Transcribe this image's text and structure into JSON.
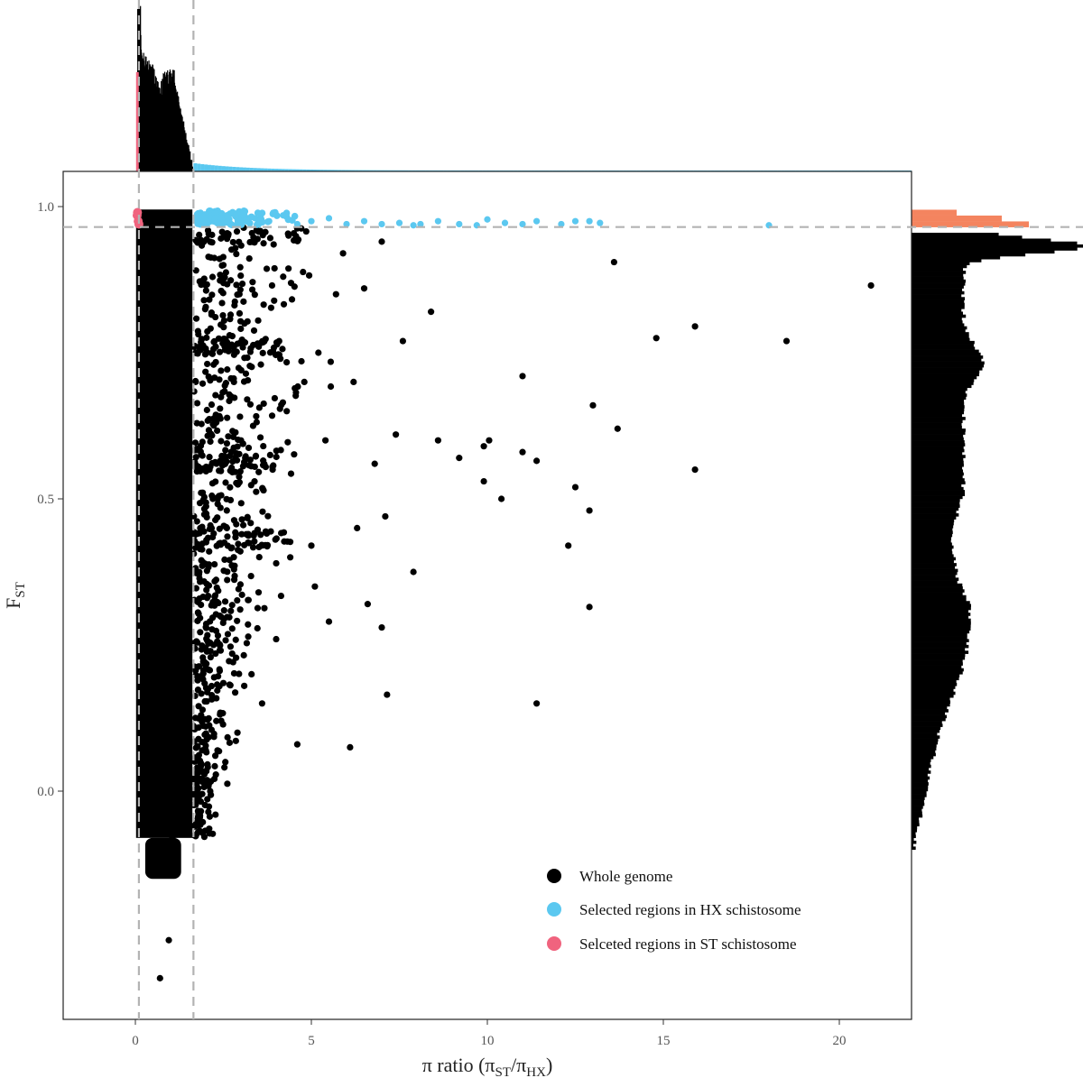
{
  "chart_data": {
    "type": "scatter",
    "xlabel": {
      "main": "π ratio (π",
      "sub1": "ST",
      "slash": "/π",
      "sub2": "HX",
      "close": ")"
    },
    "ylabel": {
      "main": "F",
      "sub": "ST"
    },
    "xlim": [
      -2,
      22
    ],
    "ylim": [
      -0.38,
      1.07
    ],
    "xticks": [
      0,
      5,
      10,
      15,
      20
    ],
    "xtick_labels": [
      "0",
      "5",
      "10",
      "15",
      "20"
    ],
    "yticks": [
      0.0,
      0.5,
      1.0
    ],
    "ytick_labels": [
      "0.0",
      "0.5",
      "1.0"
    ],
    "grid": false,
    "legend_position": "bottom-right",
    "thresholds": {
      "x_low": 0.1,
      "x_high": 1.65,
      "y": 0.965
    },
    "colors": {
      "whole_genome": "#000000",
      "hx_selected": "#5BC8F0",
      "st_selected": "#F0637E",
      "fst_hist_selected": "#F4845F",
      "threshold_line": "#B3B3B3"
    },
    "series": [
      {
        "name": "Whole genome",
        "points": [
          [
            0.7,
            -0.32
          ],
          [
            0.95,
            -0.255
          ],
          [
            0.9,
            -0.12
          ],
          [
            1.05,
            -0.08
          ],
          [
            0.75,
            -0.09
          ],
          [
            0.5,
            -0.1
          ],
          [
            1.6,
            -0.06
          ],
          [
            2.0,
            0.07
          ],
          [
            2.3,
            0.12
          ],
          [
            4.6,
            0.08
          ],
          [
            6.1,
            0.075
          ],
          [
            7.15,
            0.165
          ],
          [
            11.4,
            0.15
          ],
          [
            3.3,
            0.2
          ],
          [
            4.0,
            0.26
          ],
          [
            3.5,
            0.34
          ],
          [
            5.1,
            0.35
          ],
          [
            5.5,
            0.29
          ],
          [
            6.6,
            0.32
          ],
          [
            7.0,
            0.28
          ],
          [
            4.4,
            0.4
          ],
          [
            5.0,
            0.42
          ],
          [
            6.3,
            0.45
          ],
          [
            7.1,
            0.47
          ],
          [
            7.9,
            0.375
          ],
          [
            9.9,
            0.53
          ],
          [
            10.4,
            0.5
          ],
          [
            12.3,
            0.42
          ],
          [
            12.9,
            0.48
          ],
          [
            12.9,
            0.315
          ],
          [
            12.5,
            0.52
          ],
          [
            13.0,
            0.66
          ],
          [
            13.7,
            0.62
          ],
          [
            15.9,
            0.55
          ],
          [
            8.6,
            0.6
          ],
          [
            9.2,
            0.57
          ],
          [
            9.9,
            0.59
          ],
          [
            10.05,
            0.6
          ],
          [
            11.0,
            0.58
          ],
          [
            11.4,
            0.565
          ],
          [
            11.0,
            0.71
          ],
          [
            8.4,
            0.82
          ],
          [
            7.6,
            0.77
          ],
          [
            14.8,
            0.775
          ],
          [
            15.9,
            0.795
          ],
          [
            18.5,
            0.77
          ],
          [
            20.9,
            0.865
          ],
          [
            13.6,
            0.905
          ],
          [
            5.2,
            0.75
          ],
          [
            6.2,
            0.7
          ],
          [
            5.7,
            0.85
          ],
          [
            7.4,
            0.61
          ],
          [
            6.8,
            0.56
          ],
          [
            3.9,
            0.55
          ],
          [
            4.3,
            0.65
          ],
          [
            2.8,
            0.7
          ],
          [
            3.1,
            0.8
          ],
          [
            2.5,
            0.9
          ],
          [
            2.2,
            0.5
          ],
          [
            2.6,
            0.45
          ],
          [
            3.0,
            0.6
          ],
          [
            4.2,
            0.88
          ],
          [
            5.9,
            0.92
          ],
          [
            7.0,
            0.94
          ],
          [
            2.4,
            0.3
          ],
          [
            3.6,
            0.15
          ],
          [
            2.9,
            0.1
          ],
          [
            4.8,
            0.7
          ],
          [
            5.4,
            0.6
          ],
          [
            6.5,
            0.86
          ]
        ]
      },
      {
        "name": "Selected regions in HX schistosome",
        "points": [
          [
            1.8,
            0.98
          ],
          [
            2.2,
            0.975
          ],
          [
            2.6,
            0.985
          ],
          [
            3.0,
            0.97
          ],
          [
            3.4,
            0.98
          ],
          [
            3.8,
            0.975
          ],
          [
            4.2,
            0.985
          ],
          [
            4.6,
            0.97
          ],
          [
            5.0,
            0.975
          ],
          [
            5.5,
            0.98
          ],
          [
            6.0,
            0.97
          ],
          [
            6.5,
            0.975
          ],
          [
            7.0,
            0.97
          ],
          [
            7.5,
            0.972
          ],
          [
            7.9,
            0.968
          ],
          [
            8.1,
            0.97
          ],
          [
            8.6,
            0.975
          ],
          [
            9.2,
            0.97
          ],
          [
            9.7,
            0.968
          ],
          [
            10.0,
            0.978
          ],
          [
            10.5,
            0.972
          ],
          [
            11.0,
            0.97
          ],
          [
            11.4,
            0.975
          ],
          [
            12.1,
            0.97
          ],
          [
            12.5,
            0.975
          ],
          [
            12.9,
            0.975
          ],
          [
            13.2,
            0.972
          ],
          [
            18.0,
            0.968
          ]
        ]
      },
      {
        "name": "Selceted regions in ST schistosome",
        "points": [
          [
            0.05,
            0.985
          ],
          [
            0.08,
            0.975
          ],
          [
            0.1,
            0.97
          ],
          [
            0.06,
            0.99
          ]
        ]
      }
    ]
  }
}
